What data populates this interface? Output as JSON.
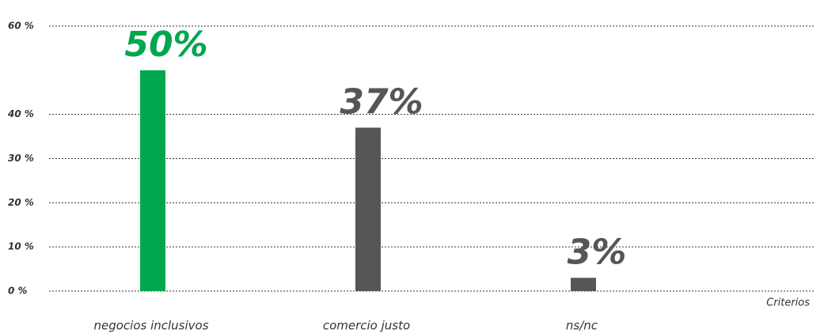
{
  "chart_data": {
    "type": "bar",
    "x_label": "Criterios",
    "categories": [
      "negocios inclusivos",
      "comercio justo",
      "ns/nc"
    ],
    "values": [
      50,
      37,
      3
    ],
    "value_labels": [
      "50%",
      "37%",
      "3%"
    ],
    "colors": [
      "#00a74f",
      "#555658",
      "#555658"
    ],
    "ylim": [
      0,
      60
    ],
    "yticks": [
      {
        "value": 0,
        "label": "0 %"
      },
      {
        "value": 10,
        "label": "10 %"
      },
      {
        "value": 20,
        "label": "20 %"
      },
      {
        "value": 30,
        "label": "30 %"
      },
      {
        "value": 40,
        "label": "40 %"
      },
      {
        "value": 60,
        "label": "60 %"
      }
    ],
    "grid": true
  }
}
